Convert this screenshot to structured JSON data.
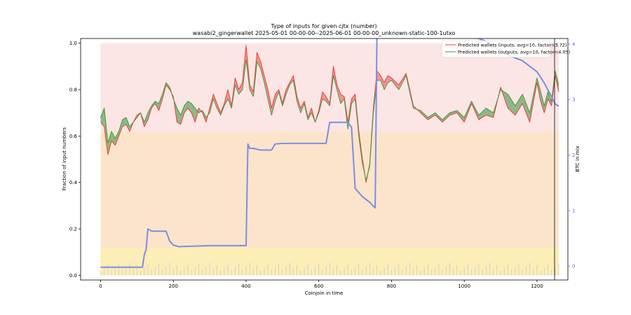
{
  "chart_data": {
    "type": "line",
    "title": "Type of inputs for given cjtx (number)",
    "subtitle": "wasabi2_gingerwallet 2025-05-01 00-00-00--2025-06-01 00-00-00_unknown-static-100-1utxo",
    "xlabel": "Coinjoin in time",
    "ylabel": "Fraction of input numbers",
    "ylabel_right": "BTC in mix",
    "xlim": [
      -55,
      1285
    ],
    "ylim": [
      -0.02,
      1.02
    ],
    "ylim_right": [
      -0.25,
      4.1
    ],
    "x_ticks": [
      0,
      200,
      400,
      600,
      800,
      1000,
      1200
    ],
    "y_ticks": [
      0.0,
      0.2,
      0.4,
      0.6,
      0.8,
      1.0
    ],
    "y_ticks_right": [
      0,
      1,
      2,
      3,
      4
    ],
    "legend_position": "top-right",
    "colors": {
      "inputs": "#e8403a",
      "outputs": "#3f9b3f",
      "fill_red": "#f05050",
      "fill_green": "#3a8f3a",
      "btc": "#7b8ee0",
      "background_pink": "#f6c6c6",
      "background_orange": "#fbe3b8",
      "background_yellow": "#fff4a8"
    },
    "series": [
      {
        "name": "Predicted wallets (inputs, avg=10, factor=3.72)",
        "axis": "left",
        "x": [
          0,
          10,
          20,
          30,
          40,
          50,
          60,
          70,
          80,
          90,
          100,
          110,
          120,
          130,
          140,
          150,
          160,
          170,
          180,
          190,
          200,
          210,
          220,
          230,
          240,
          250,
          260,
          270,
          280,
          290,
          300,
          310,
          320,
          330,
          340,
          350,
          360,
          370,
          380,
          390,
          400,
          410,
          420,
          430,
          440,
          450,
          460,
          470,
          480,
          490,
          500,
          510,
          520,
          530,
          540,
          550,
          560,
          570,
          580,
          590,
          600,
          610,
          620,
          630,
          640,
          650,
          660,
          670,
          680,
          690,
          700,
          710,
          720,
          730,
          740,
          750,
          760,
          770,
          780,
          790,
          800,
          820,
          840,
          860,
          880,
          900,
          920,
          940,
          960,
          980,
          1000,
          1020,
          1040,
          1060,
          1080,
          1100,
          1120,
          1140,
          1160,
          1180,
          1200,
          1210,
          1220,
          1230,
          1240,
          1250,
          1260
        ],
        "values": [
          0.66,
          0.64,
          0.52,
          0.58,
          0.56,
          0.6,
          0.64,
          0.65,
          0.62,
          0.66,
          0.69,
          0.7,
          0.64,
          0.67,
          0.72,
          0.74,
          0.71,
          0.76,
          0.82,
          0.8,
          0.77,
          0.66,
          0.65,
          0.7,
          0.72,
          0.7,
          0.66,
          0.72,
          0.7,
          0.66,
          0.72,
          0.78,
          0.74,
          0.7,
          0.74,
          0.8,
          0.73,
          0.85,
          0.8,
          0.83,
          0.99,
          0.82,
          0.79,
          0.96,
          0.92,
          0.86,
          0.8,
          0.72,
          0.78,
          0.8,
          0.74,
          0.8,
          0.83,
          0.86,
          0.77,
          0.72,
          0.75,
          0.68,
          0.72,
          0.66,
          0.71,
          0.79,
          0.77,
          0.74,
          0.9,
          0.82,
          0.78,
          0.77,
          0.66,
          0.76,
          0.78,
          0.62,
          0.5,
          0.4,
          0.48,
          0.72,
          0.88,
          0.86,
          0.83,
          0.86,
          0.85,
          0.82,
          0.87,
          0.73,
          0.7,
          0.67,
          0.69,
          0.66,
          0.69,
          0.7,
          0.66,
          0.74,
          0.67,
          0.69,
          0.68,
          0.81,
          0.72,
          0.69,
          0.74,
          0.66,
          0.83,
          0.75,
          0.7,
          0.76,
          0.73,
          0.86,
          0.79
        ]
      },
      {
        "name": "Predicted wallets (outputs, avg=10, factor=4.05)",
        "axis": "left",
        "x": [
          0,
          10,
          20,
          30,
          40,
          50,
          60,
          70,
          80,
          90,
          100,
          110,
          120,
          130,
          140,
          150,
          160,
          170,
          180,
          190,
          200,
          210,
          220,
          230,
          240,
          250,
          260,
          270,
          280,
          290,
          300,
          310,
          320,
          330,
          340,
          350,
          360,
          370,
          380,
          390,
          400,
          410,
          420,
          430,
          440,
          450,
          460,
          470,
          480,
          490,
          500,
          510,
          520,
          530,
          540,
          550,
          560,
          570,
          580,
          590,
          600,
          610,
          620,
          630,
          640,
          650,
          660,
          670,
          680,
          690,
          700,
          710,
          720,
          730,
          740,
          750,
          760,
          770,
          780,
          790,
          800,
          820,
          840,
          860,
          880,
          900,
          920,
          940,
          960,
          980,
          1000,
          1020,
          1040,
          1060,
          1080,
          1100,
          1120,
          1140,
          1160,
          1180,
          1200,
          1210,
          1220,
          1230,
          1240,
          1250,
          1260
        ],
        "values": [
          0.68,
          0.72,
          0.57,
          0.62,
          0.59,
          0.62,
          0.67,
          0.68,
          0.64,
          0.66,
          0.68,
          0.7,
          0.66,
          0.7,
          0.73,
          0.75,
          0.74,
          0.78,
          0.83,
          0.81,
          0.76,
          0.72,
          0.69,
          0.73,
          0.75,
          0.74,
          0.72,
          0.7,
          0.71,
          0.68,
          0.7,
          0.76,
          0.72,
          0.69,
          0.73,
          0.76,
          0.72,
          0.82,
          0.78,
          0.8,
          0.93,
          0.8,
          0.77,
          0.92,
          0.89,
          0.83,
          0.76,
          0.69,
          0.75,
          0.79,
          0.73,
          0.78,
          0.82,
          0.84,
          0.75,
          0.7,
          0.74,
          0.67,
          0.7,
          0.66,
          0.7,
          0.76,
          0.75,
          0.73,
          0.86,
          0.8,
          0.74,
          0.76,
          0.63,
          0.74,
          0.76,
          0.6,
          0.48,
          0.41,
          0.47,
          0.7,
          0.84,
          0.84,
          0.8,
          0.83,
          0.84,
          0.8,
          0.86,
          0.72,
          0.71,
          0.68,
          0.7,
          0.67,
          0.7,
          0.71,
          0.68,
          0.75,
          0.69,
          0.72,
          0.7,
          0.8,
          0.78,
          0.73,
          0.78,
          0.7,
          0.85,
          0.79,
          0.73,
          0.79,
          0.75,
          0.88,
          0.82
        ]
      },
      {
        "name": "BTC in mix",
        "axis": "right",
        "x": [
          0,
          115,
          120,
          125,
          130,
          140,
          150,
          180,
          190,
          200,
          215,
          300,
          400,
          405,
          410,
          420,
          440,
          470,
          480,
          500,
          510,
          540,
          620,
          625,
          630,
          680,
          690,
          700,
          720,
          740,
          750,
          755,
          760,
          770,
          800,
          900,
          1000,
          1040,
          1060,
          1080,
          1100,
          1120,
          1140,
          1160,
          1180,
          1200,
          1220,
          1240,
          1250,
          1260
        ],
        "values": [
          -0.02,
          -0.02,
          0.2,
          0.3,
          0.67,
          0.63,
          0.63,
          0.63,
          0.45,
          0.38,
          0.35,
          0.37,
          0.37,
          2.2,
          2.12,
          2.12,
          2.09,
          2.09,
          2.2,
          2.21,
          2.21,
          2.21,
          2.21,
          2.4,
          2.59,
          2.59,
          2.5,
          1.4,
          1.25,
          1.15,
          1.08,
          1.05,
          4.25,
          4.26,
          4.26,
          4.22,
          4.15,
          4.1,
          4.05,
          3.95,
          3.9,
          3.8,
          3.75,
          3.7,
          3.6,
          3.5,
          3.3,
          3.05,
          2.92,
          2.88
        ]
      }
    ]
  }
}
